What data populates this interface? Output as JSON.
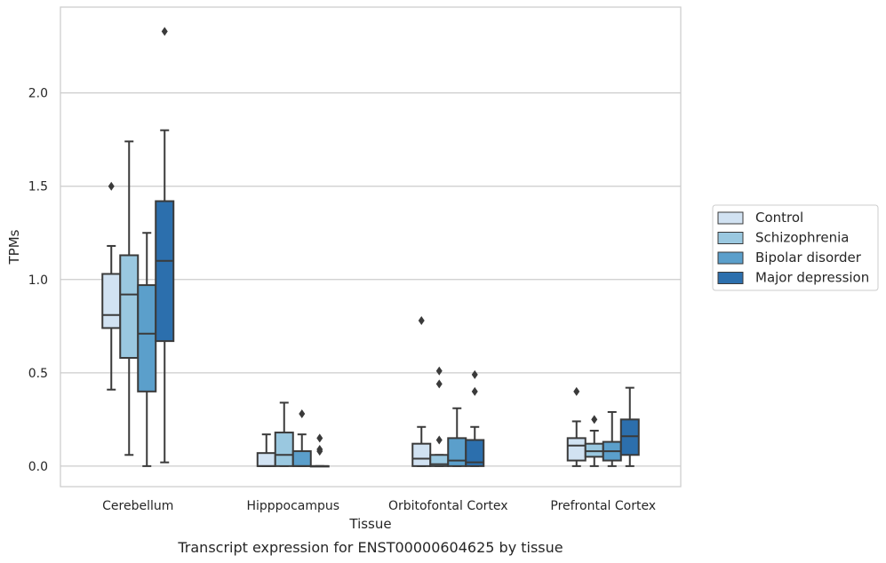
{
  "chart_data": {
    "type": "box",
    "title": "",
    "caption": "Transcript expression for ENST00000604625 by tissue",
    "xlabel": "Tissue",
    "ylabel": "TPMs",
    "ylim": [
      -0.11,
      2.46
    ],
    "yticks": [
      0.0,
      0.5,
      1.0,
      1.5,
      2.0
    ],
    "ytick_labels": [
      "0.0",
      "0.5",
      "1.0",
      "1.5",
      "2.0"
    ],
    "grid": "horizontal",
    "legend_position": "right",
    "categories": [
      "Cerebellum",
      "Hipppocampus",
      "Orbitofontal Cortex",
      "Prefrontal Cortex"
    ],
    "series": [
      {
        "name": "Control",
        "color": "#d1e2f2",
        "boxes": [
          {
            "whislo": 0.41,
            "q1": 0.74,
            "med": 0.81,
            "q3": 1.03,
            "whishi": 1.18,
            "fliers": [
              1.5
            ]
          },
          {
            "whislo": 0.0,
            "q1": 0.0,
            "med": 0.0,
            "q3": 0.07,
            "whishi": 0.17,
            "fliers": []
          },
          {
            "whislo": 0.0,
            "q1": 0.0,
            "med": 0.04,
            "q3": 0.12,
            "whishi": 0.21,
            "fliers": [
              0.78
            ]
          },
          {
            "whislo": 0.0,
            "q1": 0.03,
            "med": 0.11,
            "q3": 0.15,
            "whishi": 0.24,
            "fliers": [
              0.4
            ]
          }
        ]
      },
      {
        "name": "Schizophrenia",
        "color": "#9ac8e0",
        "boxes": [
          {
            "whislo": 0.06,
            "q1": 0.58,
            "med": 0.92,
            "q3": 1.13,
            "whishi": 1.74,
            "fliers": []
          },
          {
            "whislo": 0.0,
            "q1": 0.0,
            "med": 0.06,
            "q3": 0.18,
            "whishi": 0.34,
            "fliers": []
          },
          {
            "whislo": 0.0,
            "q1": 0.0,
            "med": 0.01,
            "q3": 0.06,
            "whishi": 0.06,
            "fliers": [
              0.14,
              0.44,
              0.51
            ]
          },
          {
            "whislo": 0.0,
            "q1": 0.05,
            "med": 0.08,
            "q3": 0.12,
            "whishi": 0.19,
            "fliers": [
              0.25
            ]
          }
        ]
      },
      {
        "name": "Bipolar disorder",
        "color": "#5b9fcb",
        "boxes": [
          {
            "whislo": 0.0,
            "q1": 0.4,
            "med": 0.71,
            "q3": 0.97,
            "whishi": 1.25,
            "fliers": []
          },
          {
            "whislo": 0.0,
            "q1": 0.0,
            "med": 0.0,
            "q3": 0.08,
            "whishi": 0.17,
            "fliers": [
              0.28
            ]
          },
          {
            "whislo": 0.0,
            "q1": 0.0,
            "med": 0.03,
            "q3": 0.15,
            "whishi": 0.31,
            "fliers": []
          },
          {
            "whislo": 0.0,
            "q1": 0.03,
            "med": 0.08,
            "q3": 0.13,
            "whishi": 0.29,
            "fliers": []
          }
        ]
      },
      {
        "name": "Major depression",
        "color": "#2c6fad",
        "boxes": [
          {
            "whislo": 0.02,
            "q1": 0.67,
            "med": 1.1,
            "q3": 1.42,
            "whishi": 1.8,
            "fliers": [
              2.33
            ]
          },
          {
            "whislo": 0.0,
            "q1": 0.0,
            "med": 0.0,
            "q3": 0.0,
            "whishi": 0.0,
            "fliers": [
              0.08,
              0.09,
              0.15
            ]
          },
          {
            "whislo": 0.0,
            "q1": 0.0,
            "med": 0.02,
            "q3": 0.14,
            "whishi": 0.21,
            "fliers": [
              0.4,
              0.49
            ]
          },
          {
            "whislo": 0.0,
            "q1": 0.06,
            "med": 0.16,
            "q3": 0.25,
            "whishi": 0.42,
            "fliers": []
          }
        ]
      }
    ]
  }
}
